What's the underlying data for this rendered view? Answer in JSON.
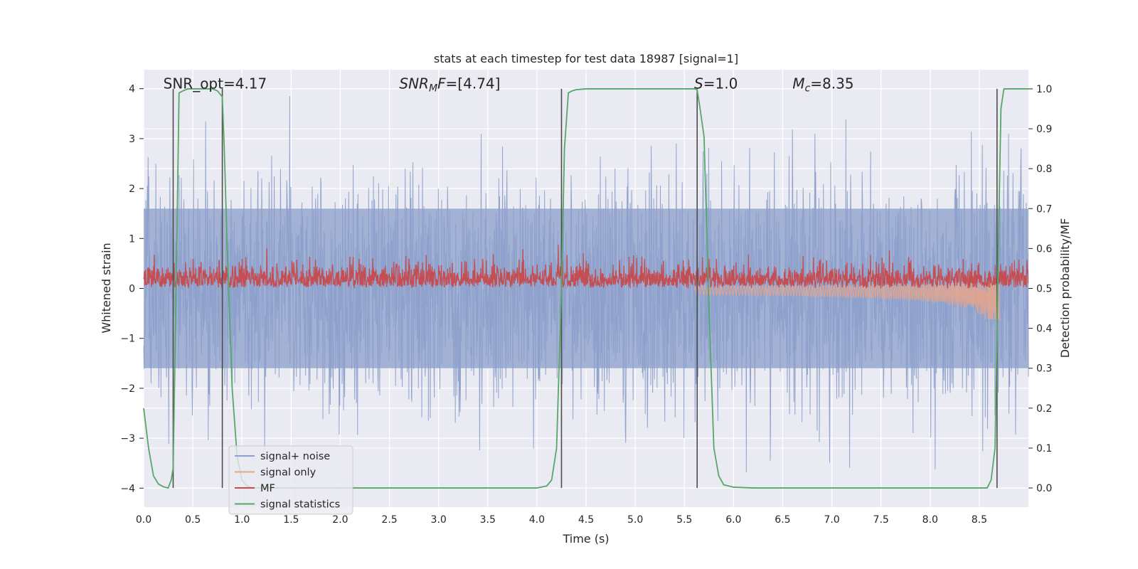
{
  "chart_data": {
    "type": "line",
    "title": "stats at each timestep for test data 18987 [signal=1]",
    "xlabel": "Time (s)",
    "ylabel": "Whitened strain",
    "y2label": "Detection probability/MF",
    "xlim": [
      0.0,
      9.0
    ],
    "ylim": [
      -4.38,
      4.38
    ],
    "y2lim": [
      -0.048,
      1.048
    ],
    "xticks": [
      0.0,
      0.5,
      1.0,
      1.5,
      2.0,
      2.5,
      3.0,
      3.5,
      4.0,
      4.5,
      5.0,
      5.5,
      6.0,
      6.5,
      7.0,
      7.5,
      8.0,
      8.5
    ],
    "xtick_labels": [
      "0.0",
      "0.5",
      "1.0",
      "1.5",
      "2.0",
      "2.5",
      "3.0",
      "3.5",
      "4.0",
      "4.5",
      "5.0",
      "5.5",
      "6.0",
      "6.5",
      "7.0",
      "7.5",
      "8.0",
      "8.5"
    ],
    "yticks": [
      -4,
      -3,
      -2,
      -1,
      0,
      1,
      2,
      3,
      4
    ],
    "ytick_labels": [
      "−4",
      "−3",
      "−2",
      "−1",
      "0",
      "1",
      "2",
      "3",
      "4"
    ],
    "y2ticks": [
      0.0,
      0.1,
      0.2,
      0.3,
      0.4,
      0.5,
      0.6,
      0.7,
      0.8,
      0.9,
      1.0
    ],
    "y2tick_labels": [
      "0.0",
      "0.1",
      "0.2",
      "0.3",
      "0.4",
      "0.5",
      "0.6",
      "0.7",
      "0.8",
      "0.9",
      "1.0"
    ],
    "grid": true,
    "annotations": [
      {
        "html": "SNR_opt=4.17",
        "x": 0.2
      },
      {
        "html": "<tspan font-style='italic'>SNR</tspan><tspan font-style='italic' font-size='14' dy='4'>M</tspan><tspan font-style='italic' dy='-4'>F</tspan>=[4.74]",
        "x": 2.6
      },
      {
        "html": "<tspan font-style='italic'>S</tspan>=1.0",
        "x": 5.6
      },
      {
        "html": "<tspan font-style='italic'>M</tspan><tspan font-style='italic' font-size='14' dy='4'>c</tspan><tspan dy='-4'>=8.35</tspan>",
        "x": 6.6
      }
    ],
    "annotation_texts": [
      "SNR_opt=4.17",
      "SNRMF=[4.74]",
      "S=1.0",
      "Mc=8.35"
    ],
    "vlines": [
      0.3,
      0.8,
      4.25,
      5.63,
      8.68
    ],
    "series": [
      {
        "name": "signal+ noise",
        "axis": "left",
        "color": "#8da0cb",
        "description": "whitened strain, amplitude roughly within ±3.9 across 0–9 s"
      },
      {
        "name": "signal only",
        "axis": "left",
        "color": "#e7a58a",
        "description": "chirp growing from ~5.6 s to ~8.7 s, peak ~-0.6"
      },
      {
        "name": "MF",
        "axis": "right",
        "color": "#c44e52",
        "description": "matched-filter output fluctuating ~0.50–0.58"
      },
      {
        "name": "signal statistics",
        "axis": "right",
        "color": "#55a868",
        "x": [
          0.0,
          0.05,
          0.1,
          0.15,
          0.2,
          0.25,
          0.28,
          0.3,
          0.33,
          0.36,
          0.4,
          0.45,
          0.5,
          0.55,
          0.6,
          0.65,
          0.7,
          0.75,
          0.8,
          0.82,
          0.85,
          0.9,
          0.95,
          1.0,
          1.05,
          1.1,
          1.2,
          1.5,
          2.0,
          2.5,
          3.0,
          3.5,
          4.0,
          4.1,
          4.15,
          4.2,
          4.25,
          4.28,
          4.32,
          4.36,
          4.4,
          4.5,
          4.7,
          5.0,
          5.3,
          5.55,
          5.6,
          5.63,
          5.66,
          5.7,
          5.75,
          5.8,
          5.85,
          5.9,
          6.0,
          6.2,
          7.0,
          8.0,
          8.5,
          8.58,
          8.62,
          8.66,
          8.69,
          8.72,
          8.75,
          8.8,
          8.9,
          9.0
        ],
        "y": [
          0.2,
          0.1,
          0.03,
          0.01,
          0.003,
          0.0,
          0.02,
          0.05,
          0.5,
          0.99,
          0.995,
          1.0,
          1.0,
          1.0,
          1.0,
          1.0,
          1.0,
          0.995,
          0.98,
          0.85,
          0.6,
          0.25,
          0.08,
          0.02,
          0.005,
          0.0,
          0.0,
          0.0,
          0.0,
          0.0,
          0.0,
          0.0,
          0.0,
          0.005,
          0.02,
          0.1,
          0.5,
          0.85,
          0.99,
          0.995,
          0.998,
          1.0,
          1.0,
          1.0,
          1.0,
          1.0,
          1.0,
          0.998,
          0.95,
          0.88,
          0.45,
          0.1,
          0.03,
          0.008,
          0.002,
          0.0,
          0.0,
          0.0,
          0.0,
          0.0,
          0.02,
          0.1,
          0.55,
          0.95,
          1.0,
          1.0,
          1.0,
          1.0
        ]
      }
    ],
    "legend": {
      "location": "lower left",
      "entries": [
        {
          "label": "signal+ noise",
          "color": "#8da0cb"
        },
        {
          "label": "signal only",
          "color": "#e7a58a"
        },
        {
          "label": "MF",
          "color": "#c44e52"
        },
        {
          "label": "signal statistics",
          "color": "#55a868"
        }
      ]
    },
    "colors": {
      "background": "#eaeaf2",
      "grid": "#ffffff",
      "vline": "#4d4d4d",
      "noise_fill": "#9aabd0"
    }
  }
}
